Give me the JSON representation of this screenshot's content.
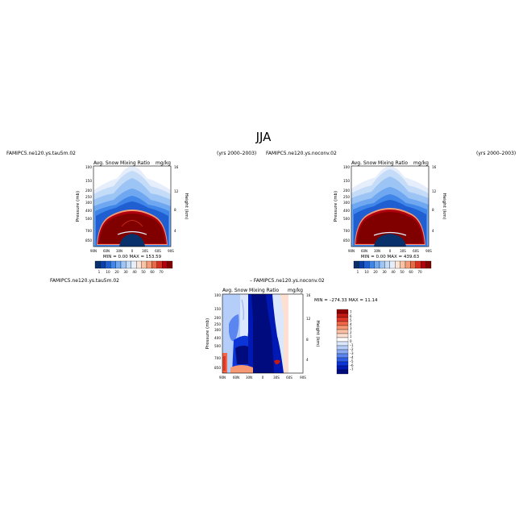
{
  "page": {
    "title": "JJA"
  },
  "colors": {
    "seq_levels": [
      "#08306b",
      "#0a3fa8",
      "#1f5fd1",
      "#3f86e8",
      "#6fa8f0",
      "#9cc4f5",
      "#c5dcf8",
      "#e6eefb",
      "#fbe4d6",
      "#f9c4a6",
      "#f39c77",
      "#e96a47",
      "#d7301f",
      "#b0000d",
      "#800000"
    ],
    "div_levels": [
      "#000c7d",
      "#0018b4",
      "#0b35d6",
      "#2f5ee6",
      "#5c86ef",
      "#8aabf4",
      "#b5cdf9",
      "#dbe7fc",
      "#ffffff",
      "#fde0d2",
      "#fbbfa3",
      "#f79874",
      "#f06848",
      "#e0372a",
      "#c31a14",
      "#900000"
    ]
  },
  "panels": {
    "left": {
      "case": "FAMIPC5.ne120.ys.tau5m.02",
      "years": "(yrs 2000–2003)",
      "var": "Avg. Snow Mixing Ratio",
      "units": "mg/kg",
      "ylabel": "Pressure (mb)",
      "ylabel_right": "Height (km)",
      "stats": "MIN =   0.00   MAX = 153.59"
    },
    "right": {
      "case": "FAMIPC5.ne120.ys.noconv.02",
      "years": "(yrs 2000–2003)",
      "var": "Avg. Snow Mixing Ratio",
      "units": "mg/kg",
      "ylabel": "Pressure (mb)",
      "ylabel_right": "Height (km)",
      "stats": "MIN =   0.00   MAX = 439.63"
    },
    "diff": {
      "case_a": "FAMIPC5.ne120.ys.tau5m.02",
      "case_b": "– FAMIPC5.ne120.ys.noconv.02",
      "var": "Avg. Snow Mixing Ratio",
      "units": "mg/kg",
      "ylabel": "Pressure (mb)",
      "ylabel_right": "Height (km)",
      "stats": "MIN = –274.33   MAX =  11.14"
    }
  },
  "chart_data": [
    {
      "type": "heatmap",
      "title": "Avg. Snow Mixing Ratio",
      "case": "FAMIPC5.ne120.ys.tau5m.02",
      "units": "mg/kg",
      "x_ticks": [
        "90N",
        "60N",
        "30N",
        "0",
        "30S",
        "60S",
        "90S"
      ],
      "y_ticks": [
        "100",
        "150",
        "200",
        "250",
        "300",
        "400",
        "500",
        "700",
        "850"
      ],
      "y_ticks_right": [
        "16",
        "12",
        "8",
        "4"
      ],
      "xlabel": "",
      "ylabel": "Pressure (mb)",
      "ylabel_right": "Height (km)",
      "min": 0.0,
      "max": 153.59,
      "colorbar_labels": [
        "1",
        "10",
        "20",
        "30",
        "40",
        "50",
        "60",
        "70"
      ]
    },
    {
      "type": "heatmap",
      "title": "Avg. Snow Mixing Ratio",
      "case": "FAMIPC5.ne120.ys.noconv.02",
      "units": "mg/kg",
      "x_ticks": [
        "90N",
        "60N",
        "30N",
        "0",
        "30S",
        "60S",
        "90S"
      ],
      "y_ticks": [
        "100",
        "150",
        "200",
        "250",
        "300",
        "400",
        "500",
        "700",
        "850"
      ],
      "y_ticks_right": [
        "16",
        "12",
        "8",
        "4"
      ],
      "xlabel": "",
      "ylabel": "Pressure (mb)",
      "ylabel_right": "Height (km)",
      "min": 0.0,
      "max": 439.63,
      "colorbar_labels": [
        "1",
        "10",
        "20",
        "30",
        "40",
        "50",
        "60",
        "70"
      ]
    },
    {
      "type": "heatmap",
      "title": "Avg. Snow Mixing Ratio",
      "case": "FAMIPC5.ne120.ys.tau5m.02 – FAMIPC5.ne120.ys.noconv.02",
      "units": "mg/kg",
      "x_ticks": [
        "90N",
        "60N",
        "30N",
        "0",
        "30S",
        "60S",
        "90S"
      ],
      "y_ticks": [
        "100",
        "150",
        "200",
        "250",
        "300",
        "400",
        "500",
        "700",
        "850"
      ],
      "y_ticks_right": [
        "16",
        "12",
        "8",
        "4"
      ],
      "xlabel": "",
      "ylabel": "Pressure (mb)",
      "ylabel_right": "Height (km)",
      "min": -274.33,
      "max": 11.14,
      "colorbar_labels": [
        "7",
        "6",
        "5",
        "4",
        "3",
        "2",
        "1",
        "0",
        "–1",
        "–2",
        "–3",
        "–4",
        "–5",
        "–6",
        "–7"
      ]
    }
  ]
}
